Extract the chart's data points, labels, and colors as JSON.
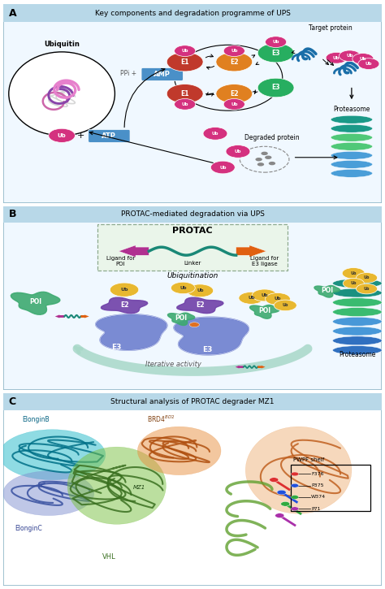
{
  "panel_A_title": "Key components and degradation programme of UPS",
  "panel_B_title": "PROTAC-mediated degradation via UPS",
  "panel_C_title": "Structural analysis of PROTAC degrader MZ1",
  "colors": {
    "ubiquitin_pink": "#D4317F",
    "E1_red": "#C0392B",
    "E2_orange": "#E08020",
    "E3_green": "#27AE60",
    "AMP_blue": "#4A90C8",
    "ATP_blue": "#4A90C8",
    "target_protein_blue": "#1A6EA8",
    "proteasome_teal": "#1A9988",
    "proteasome_green": "#50C878",
    "proteasome_blue": "#4A9ED8",
    "POI_green": "#3DAA70",
    "E3_blue_large": "#5870BE",
    "E2_purple": "#7040A8",
    "Ub_yellow": "#E8B830",
    "linker_teal": "#1A8877",
    "ligand_POI_magenta": "#B03090",
    "ligand_E3_orange": "#E06010",
    "ElonginB_teal": "#20B8C8",
    "ElonginC_lavender": "#8090D0",
    "VHL_green": "#78C040",
    "BRD4_orange": "#E89040",
    "panel_bg_A": "#F0F8FF",
    "panel_bg_B": "#F0F8FF",
    "panel_bg_C": "#FFFFFF",
    "header_bg": "#B8D8E8",
    "border_color": "#90B8C8"
  },
  "figsize": [
    4.74,
    7.25
  ],
  "dpi": 100
}
